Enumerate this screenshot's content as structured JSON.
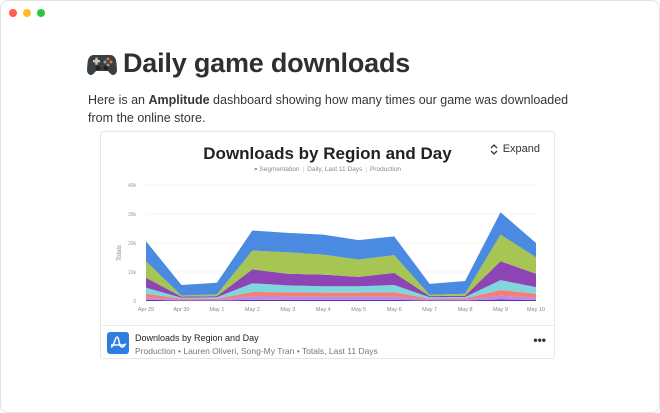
{
  "window": {
    "controls": [
      {
        "name": "close",
        "color": "#fe5f57"
      },
      {
        "name": "minimize",
        "color": "#febc2e"
      },
      {
        "name": "zoom",
        "color": "#28c840"
      }
    ]
  },
  "page": {
    "icon": "game-controller-icon",
    "title": "Daily game downloads",
    "intro_before": "Here is an ",
    "intro_bold": "Amplitude",
    "intro_after": " dashboard showing how many times our game was downloaded from the online store."
  },
  "card": {
    "expand_label": "Expand",
    "meta": {
      "type": "Segmentation",
      "range": "Daily, Last 11 Days",
      "project": "Production"
    },
    "footer": {
      "title": "Downloads by Region and Day",
      "subtitle": "Production • Lauren Oliveri, Song-My Tran • Totals, Last 11 Days",
      "more": "•••"
    }
  },
  "chart_data": {
    "type": "area",
    "stacked": true,
    "title": "Downloads by Region and Day",
    "ylabel": "Totals",
    "xlabel": "",
    "ylim": [
      0,
      40000
    ],
    "yticks": [
      0,
      10000,
      20000,
      30000,
      40000
    ],
    "ytick_labels": [
      "0",
      "10k",
      "20k",
      "30k",
      "40k"
    ],
    "grid": true,
    "categories": [
      "Apr 29",
      "Apr 30",
      "May 1",
      "May 2",
      "May 3",
      "May 4",
      "May 5",
      "May 6",
      "May 7",
      "May 8",
      "May 9",
      "May 10"
    ],
    "series": [
      {
        "color": "#5b3a9e",
        "values": [
          400,
          200,
          200,
          400,
          400,
          400,
          400,
          400,
          200,
          200,
          500,
          400
        ]
      },
      {
        "color": "#b98af0",
        "values": [
          700,
          300,
          300,
          1200,
          1100,
          1100,
          1100,
          1100,
          300,
          300,
          1300,
          800
        ]
      },
      {
        "color": "#f47f72",
        "values": [
          1400,
          300,
          300,
          1500,
          1500,
          1400,
          1400,
          1500,
          300,
          400,
          2000,
          1300
        ]
      },
      {
        "color": "#7fd6dd",
        "values": [
          2100,
          300,
          500,
          3000,
          2400,
          2200,
          2200,
          2500,
          500,
          500,
          3400,
          2300
        ]
      },
      {
        "color": "#8d44b5",
        "values": [
          3400,
          400,
          400,
          4800,
          4000,
          4000,
          3200,
          4200,
          400,
          400,
          6500,
          4600
        ]
      },
      {
        "color": "#a6c553",
        "values": [
          5700,
          400,
          600,
          6500,
          7400,
          6900,
          6000,
          6100,
          400,
          700,
          9200,
          5700
        ]
      },
      {
        "color": "#4a8ae0",
        "values": [
          6900,
          3600,
          4000,
          6900,
          6700,
          6900,
          6700,
          6500,
          3800,
          4400,
          7700,
          4900
        ]
      }
    ]
  }
}
